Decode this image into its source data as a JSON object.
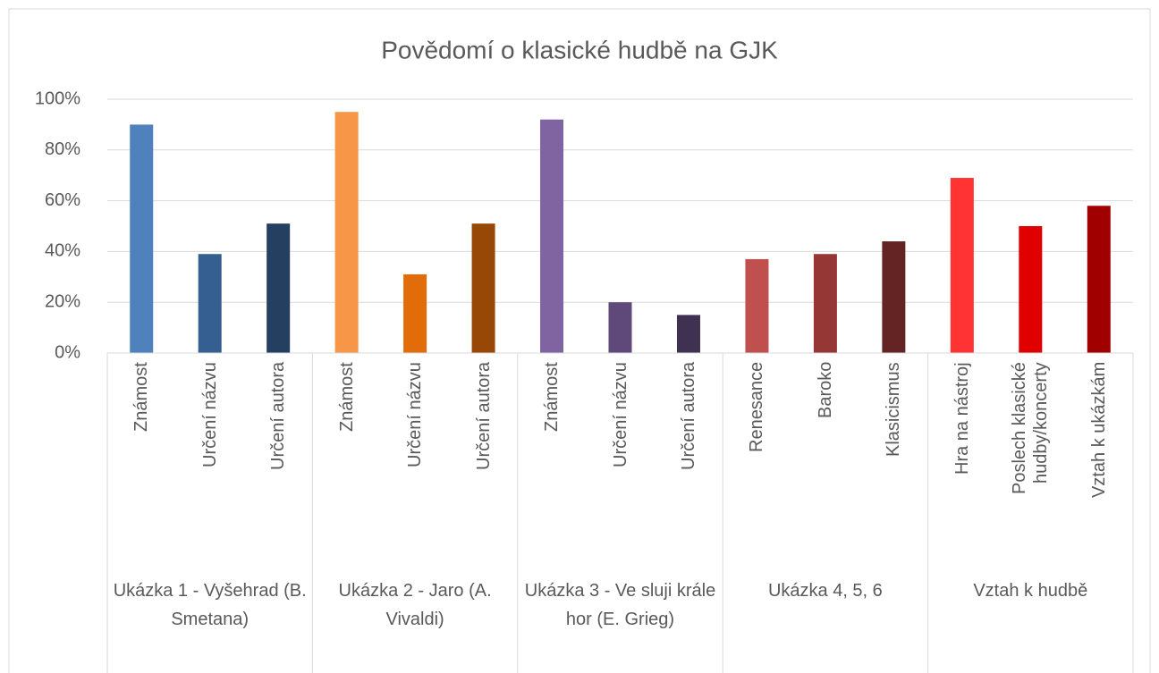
{
  "chart_data": {
    "type": "bar",
    "title": "Povědomí o klasické hudbě na GJK",
    "ylim": [
      0,
      100
    ],
    "yticks": [
      {
        "value": 0,
        "label": "0%"
      },
      {
        "value": 20,
        "label": "20%"
      },
      {
        "value": 40,
        "label": "40%"
      },
      {
        "value": 60,
        "label": "60%"
      },
      {
        "value": 80,
        "label": "80%"
      },
      {
        "value": 100,
        "label": "100%"
      }
    ],
    "grid": true,
    "groups": [
      {
        "name": "Ukázka 1 - Vyšehrad (B. Smetana)",
        "categories": [
          "Známost",
          "Určení názvu",
          "Určení autora"
        ],
        "values": [
          90,
          39,
          51
        ],
        "colors": [
          "#4f81bd",
          "#355f91",
          "#243f60"
        ]
      },
      {
        "name": "Ukázka 2 - Jaro (A. Vivaldi)",
        "categories": [
          "Známost",
          "Určení názvu",
          "Určení autora"
        ],
        "values": [
          95,
          31,
          51
        ],
        "colors": [
          "#f79646",
          "#e36c0a",
          "#974806"
        ]
      },
      {
        "name": "Ukázka 3 - Ve sluji krále hor (E. Grieg)",
        "categories": [
          "Známost",
          "Určení názvu",
          "Určení autora"
        ],
        "values": [
          92,
          20,
          15
        ],
        "colors": [
          "#8064a2",
          "#5f497a",
          "#3f3151"
        ]
      },
      {
        "name": "Ukázka 4, 5, 6",
        "categories": [
          "Renesance",
          "Baroko",
          "Klasicismus"
        ],
        "values": [
          37,
          39,
          44
        ],
        "colors": [
          "#c0504d",
          "#953735",
          "#632423"
        ]
      },
      {
        "name": "Vztah k hudbě",
        "categories": [
          "Hra na nástroj",
          "Poslech klasické hudby/koncerty",
          "Vztah k ukázkám"
        ],
        "values": [
          69,
          50,
          58
        ],
        "colors": [
          "#ff3333",
          "#e00000",
          "#a00000"
        ]
      }
    ]
  }
}
